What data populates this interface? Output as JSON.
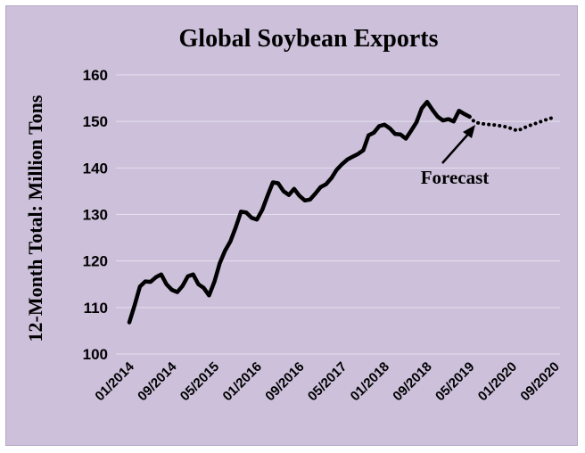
{
  "chart_data": {
    "type": "line",
    "title": "Global Soybean Exports",
    "xlabel": "",
    "ylabel": "12-Month Total: Million Tons",
    "ylim": [
      100,
      160
    ],
    "yticks": [
      "100",
      "110",
      "120",
      "130",
      "140",
      "150",
      "160"
    ],
    "xticks": [
      "01/2014",
      "09/2014",
      "05/2015",
      "01/2016",
      "09/2016",
      "05/2017",
      "01/2018",
      "09/2018",
      "05/2019",
      "01/2020",
      "09/2020"
    ],
    "grid": true,
    "series": [
      {
        "style": "solid",
        "x": [
          "01/2014",
          "02/2014",
          "03/2014",
          "04/2014",
          "05/2014",
          "06/2014",
          "07/2014",
          "08/2014",
          "09/2014",
          "10/2014",
          "11/2014",
          "12/2014",
          "01/2015",
          "02/2015",
          "03/2015",
          "04/2015",
          "05/2015",
          "06/2015",
          "07/2015",
          "08/2015",
          "09/2015",
          "10/2015",
          "11/2015",
          "12/2015",
          "01/2016",
          "02/2016",
          "03/2016",
          "04/2016",
          "05/2016",
          "06/2016",
          "07/2016",
          "08/2016",
          "09/2016",
          "10/2016",
          "11/2016",
          "12/2016",
          "01/2017",
          "02/2017",
          "03/2017",
          "04/2017",
          "05/2017",
          "06/2017",
          "07/2017",
          "08/2017",
          "09/2017",
          "10/2017",
          "11/2017",
          "12/2017",
          "01/2018",
          "02/2018",
          "03/2018",
          "04/2018",
          "05/2018",
          "06/2018",
          "07/2018",
          "08/2018",
          "09/2018",
          "10/2018",
          "11/2018",
          "12/2018",
          "01/2019",
          "02/2019",
          "03/2019",
          "04/2019",
          "05/2019"
        ],
        "values": [
          106.8,
          110.5,
          114.5,
          115.6,
          115.5,
          116.5,
          117.1,
          115.0,
          113.8,
          113.3,
          114.6,
          116.7,
          117.1,
          115.0,
          114.2,
          112.6,
          115.5,
          119.5,
          122.2,
          124.2,
          127.2,
          130.6,
          130.4,
          129.3,
          128.9,
          131.0,
          134.0,
          136.9,
          136.7,
          135.0,
          134.2,
          135.5,
          134.0,
          133.0,
          133.2,
          134.5,
          135.9,
          136.5,
          137.8,
          139.6,
          140.8,
          141.8,
          142.4,
          143.0,
          143.8,
          147.0,
          147.6,
          149.0,
          149.3,
          148.5,
          147.3,
          147.2,
          146.3,
          148.0,
          149.8,
          152.8,
          154.2,
          152.5,
          151.0,
          150.2,
          150.5,
          150.0,
          152.3,
          151.6,
          151.0
        ]
      },
      {
        "style": "dotted",
        "x": [
          "05/2019",
          "06/2019",
          "07/2019",
          "08/2019",
          "09/2019",
          "10/2019",
          "11/2019",
          "12/2019",
          "01/2020",
          "02/2020",
          "03/2020",
          "04/2020",
          "05/2020",
          "06/2020",
          "07/2020",
          "08/2020",
          "09/2020"
        ],
        "values": [
          151.0,
          149.8,
          149.6,
          149.4,
          149.3,
          149.2,
          149.0,
          148.8,
          148.4,
          148.0,
          148.5,
          149.0,
          149.4,
          149.8,
          150.2,
          150.6,
          150.9
        ]
      }
    ],
    "annotations": [
      {
        "text": "Forecast",
        "points_to": "dotted series"
      }
    ]
  }
}
